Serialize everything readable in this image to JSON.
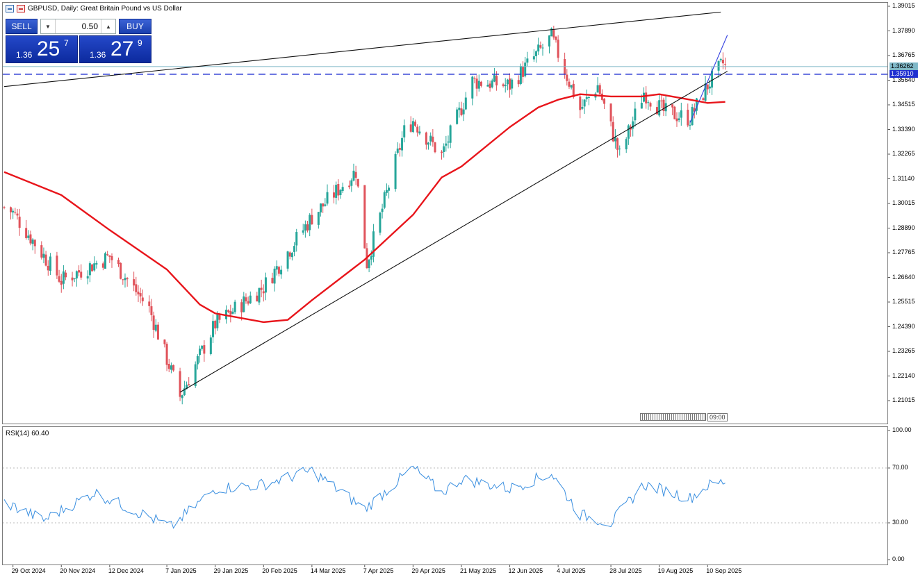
{
  "header": {
    "title": "GBPUSD, Daily:  Great Britain Pound vs US Dollar"
  },
  "trade_panel": {
    "sell_label": "SELL",
    "buy_label": "BUY",
    "lot": "0.50",
    "sell_price_prefix": "1.36",
    "sell_price_main": "25",
    "sell_price_sup": "7",
    "buy_price_prefix": "1.36",
    "buy_price_main": "27",
    "buy_price_sup": "9"
  },
  "price_axis": {
    "labels": [
      "1.39015",
      "1.37890",
      "1.36765",
      "1.35640",
      "1.34515",
      "1.33390",
      "1.32265",
      "1.31140",
      "1.30015",
      "1.28890",
      "1.27765",
      "1.26640",
      "1.25515",
      "1.24390",
      "1.23265",
      "1.22140",
      "1.21015"
    ],
    "current_price_label": "1.36262",
    "horizontal_line_label": "1.35910"
  },
  "time_axis": {
    "labels": [
      "29 Oct 2024",
      "20 Nov 2024",
      "12 Dec 2024",
      "7 Jan 2025",
      "29 Jan 2025",
      "20 Feb 2025",
      "14 Mar 2025",
      "7 Apr 2025",
      "29 Apr 2025",
      "21 May 2025",
      "12 Jun 2025",
      "4 Jul 2025",
      "28 Jul 2025",
      "19 Aug 2025",
      "10 Sep 2025"
    ]
  },
  "rsi": {
    "label": "RSI(14) 60.40",
    "levels": [
      "100.00",
      "70.00",
      "30.00",
      "0.00"
    ]
  },
  "scroll_marker": {
    "time": "09:00"
  },
  "colors": {
    "bull": "#26a69a",
    "bear": "#e0525a",
    "ma": "#e8151b",
    "rsi": "#3a8fe0",
    "hline": "#1f2fd0",
    "trend_blue": "#3340e0"
  },
  "chart_data": {
    "type": "candlestick",
    "symbol": "GBPUSD",
    "timeframe": "Daily",
    "title": "GBPUSD, Daily:  Great Britain Pound vs US Dollar",
    "ylim": [
      1.2045,
      1.3915
    ],
    "x_range": [
      "29 Oct 2024",
      "18 Sep 2025"
    ],
    "bid": 1.36257,
    "ask": 1.36279,
    "current_price": 1.36262,
    "horizontal_line": 1.3591,
    "key_points": [
      {
        "date": "25 Oct 2024",
        "close": 1.2985
      },
      {
        "date": "29 Oct 2024",
        "close": 1.296
      },
      {
        "date": "20 Nov 2024",
        "close": 1.265
      },
      {
        "date": "12 Dec 2024",
        "close": 1.276
      },
      {
        "date": "30 Dec 2024",
        "close": 1.252
      },
      {
        "date": "13 Jan 2025",
        "close": 1.212
      },
      {
        "date": "29 Jan 2025",
        "close": 1.245
      },
      {
        "date": "20 Feb 2025",
        "close": 1.262
      },
      {
        "date": "14 Mar 2025",
        "close": 1.294
      },
      {
        "date": "3 Apr 2025",
        "close": 1.315
      },
      {
        "date": "8 Apr 2025",
        "close": 1.273
      },
      {
        "date": "25 Apr 2025",
        "close": 1.333
      },
      {
        "date": "29 Apr 2025",
        "close": 1.338
      },
      {
        "date": "12 May 2025",
        "close": 1.322
      },
      {
        "date": "26 May 2025",
        "close": 1.356
      },
      {
        "date": "12 Jun 2025",
        "close": 1.354
      },
      {
        "date": "1 Jul 2025",
        "close": 1.376
      },
      {
        "date": "14 Jul 2025",
        "close": 1.343
      },
      {
        "date": "22 Jul 2025",
        "close": 1.354
      },
      {
        "date": "1 Aug 2025",
        "close": 1.322
      },
      {
        "date": "12 Aug 2025",
        "close": 1.351
      },
      {
        "date": "21 Aug 2025",
        "close": 1.342
      },
      {
        "date": "2 Sep 2025",
        "close": 1.339
      },
      {
        "date": "10 Sep 2025",
        "close": 1.354
      },
      {
        "date": "17 Sep 2025",
        "close": 1.364
      },
      {
        "date": "18 Sep 2025",
        "close": 1.3626
      }
    ],
    "moving_average": [
      {
        "date": "25 Oct 2024",
        "value": 1.3145
      },
      {
        "date": "20 Nov 2024",
        "value": 1.304
      },
      {
        "date": "12 Dec 2024",
        "value": 1.288
      },
      {
        "date": "7 Jan 2025",
        "value": 1.27
      },
      {
        "date": "22 Jan 2025",
        "value": 1.254
      },
      {
        "date": "29 Jan 2025",
        "value": 1.25
      },
      {
        "date": "20 Feb 2025",
        "value": 1.246
      },
      {
        "date": "3 Mar 2025",
        "value": 1.247
      },
      {
        "date": "14 Mar 2025",
        "value": 1.256
      },
      {
        "date": "7 Apr 2025",
        "value": 1.2745
      },
      {
        "date": "29 Apr 2025",
        "value": 1.295
      },
      {
        "date": "12 May 2025",
        "value": 1.312
      },
      {
        "date": "21 May 2025",
        "value": 1.317
      },
      {
        "date": "12 Jun 2025",
        "value": 1.335
      },
      {
        "date": "25 Jun 2025",
        "value": 1.344
      },
      {
        "date": "4 Jul 2025",
        "value": 1.3475
      },
      {
        "date": "14 Jul 2025",
        "value": 1.35
      },
      {
        "date": "28 Jul 2025",
        "value": 1.349
      },
      {
        "date": "11 Aug 2025",
        "value": 1.349
      },
      {
        "date": "19 Aug 2025",
        "value": 1.35
      },
      {
        "date": "2 Sep 2025",
        "value": 1.3475
      },
      {
        "date": "10 Sep 2025",
        "value": 1.346
      },
      {
        "date": "18 Sep 2025",
        "value": 1.3465
      }
    ],
    "trendlines": [
      {
        "name": "upper",
        "from": {
          "date": "25 Oct 2024",
          "price": 1.3535
        },
        "to": {
          "date": "16 Sep 2025",
          "price": 1.3875
        }
      },
      {
        "name": "lower",
        "from": {
          "date": "13 Jan 2025",
          "price": 1.214
        },
        "to": {
          "date": "19 Sep 2025",
          "price": 1.3605
        }
      },
      {
        "name": "short-term",
        "from": {
          "date": "2 Sep 2025",
          "price": 1.337
        },
        "to": {
          "date": "19 Sep 2025",
          "price": 1.377
        }
      }
    ],
    "rsi": {
      "period": 14,
      "current": 60.4,
      "ylim": [
        0,
        100
      ],
      "levels": [
        70,
        30
      ],
      "key_points": [
        {
          "date": "25 Oct 2024",
          "value": 45
        },
        {
          "date": "12 Nov 2024",
          "value": 32
        },
        {
          "date": "5 Dec 2024",
          "value": 52
        },
        {
          "date": "9 Jan 2025",
          "value": 27
        },
        {
          "date": "29 Jan 2025",
          "value": 55
        },
        {
          "date": "20 Feb 2025",
          "value": 58
        },
        {
          "date": "14 Mar 2025",
          "value": 68
        },
        {
          "date": "7 Apr 2025",
          "value": 40
        },
        {
          "date": "29 Apr 2025",
          "value": 70
        },
        {
          "date": "12 May 2025",
          "value": 52
        },
        {
          "date": "21 May 2025",
          "value": 62
        },
        {
          "date": "12 Jun 2025",
          "value": 55
        },
        {
          "date": "1 Jul 2025",
          "value": 66
        },
        {
          "date": "14 Jul 2025",
          "value": 36
        },
        {
          "date": "28 Jul 2025",
          "value": 30
        },
        {
          "date": "12 Aug 2025",
          "value": 58
        },
        {
          "date": "2 Sep 2025",
          "value": 48
        },
        {
          "date": "10 Sep 2025",
          "value": 57
        },
        {
          "date": "18 Sep 2025",
          "value": 60.4
        }
      ]
    }
  }
}
